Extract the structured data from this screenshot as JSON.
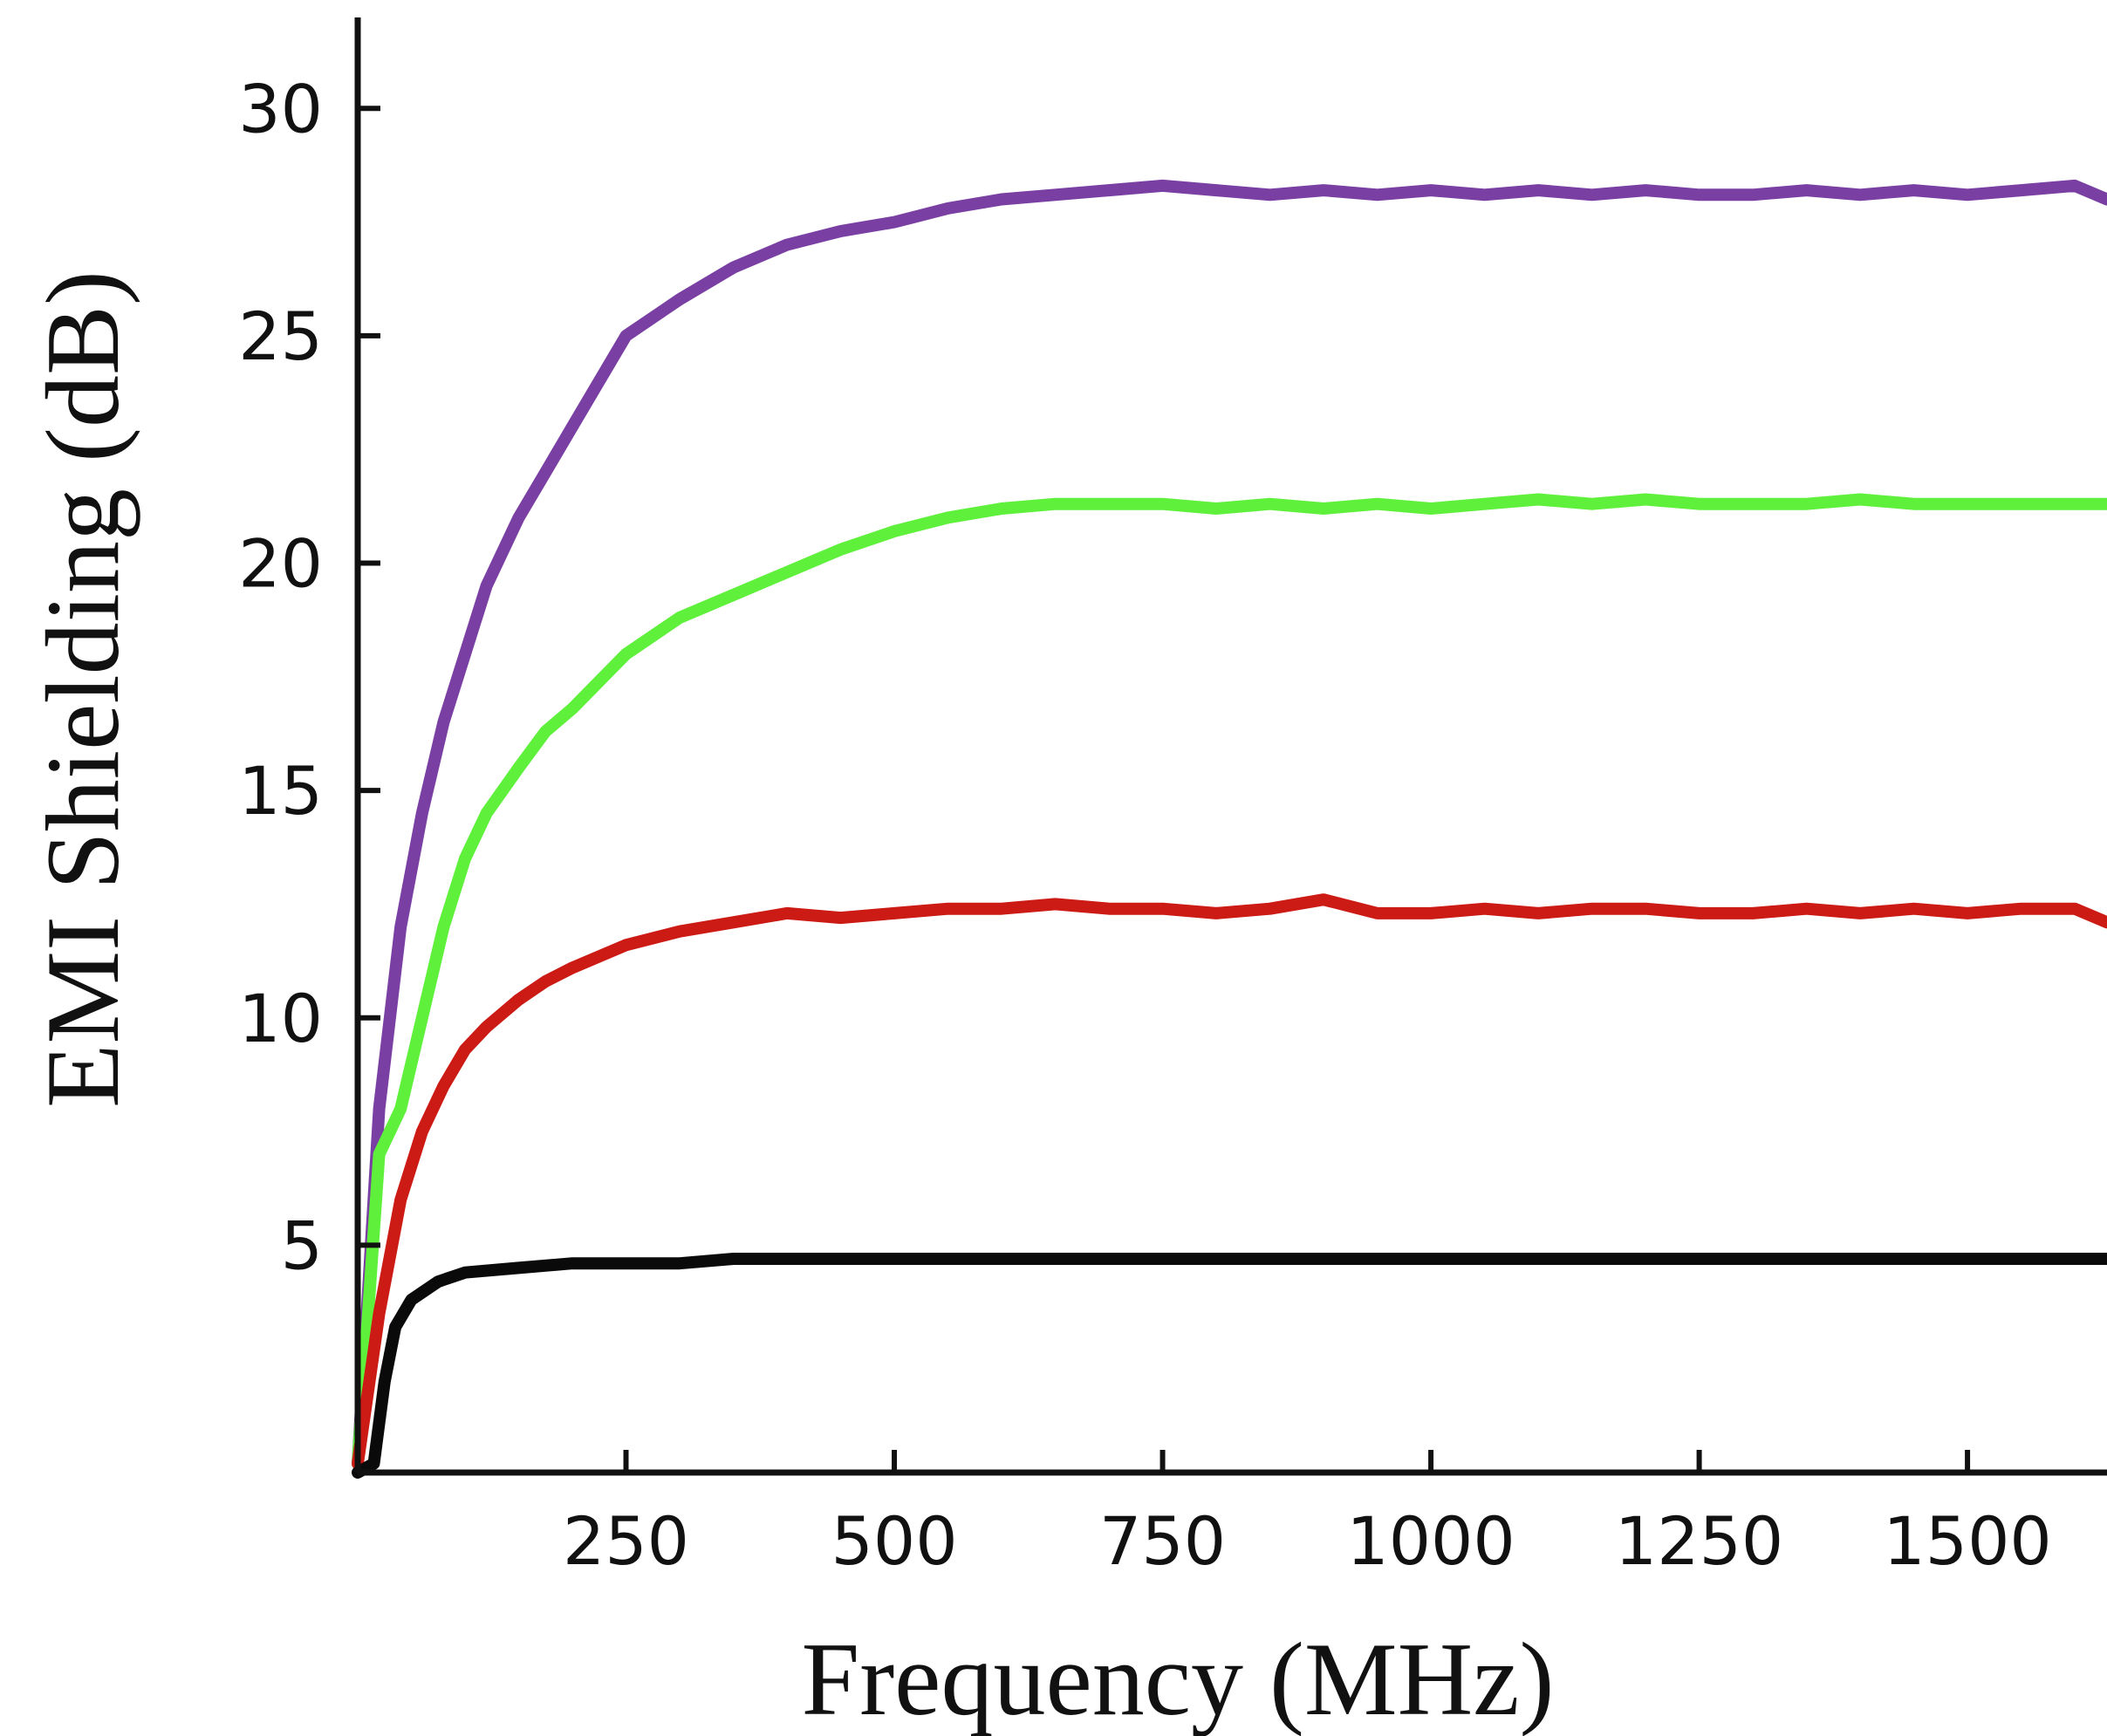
{
  "chart_data": {
    "type": "line",
    "title": "",
    "xlabel": "Frequency (MHz)",
    "ylabel": "EMI Shielding (dB)",
    "xlim": [
      0,
      1630
    ],
    "ylim": [
      0,
      32
    ],
    "x_ticks": [
      250,
      500,
      750,
      1000,
      1250,
      1500
    ],
    "x_tick_labels": [
      "250",
      "500",
      "750",
      "1000",
      "1250",
      "1500"
    ],
    "y_ticks": [
      5,
      10,
      15,
      20,
      25,
      30
    ],
    "y_tick_labels": [
      "5",
      "10",
      "15",
      "20",
      "25",
      "30"
    ],
    "grid": false,
    "legend": "none",
    "series": [
      {
        "color": "#7a3fa2",
        "x": [
          0,
          20,
          40,
          60,
          80,
          100,
          120,
          150,
          175,
          200,
          250,
          300,
          350,
          400,
          450,
          500,
          550,
          600,
          650,
          700,
          750,
          800,
          850,
          900,
          950,
          1000,
          1050,
          1100,
          1150,
          1200,
          1250,
          1300,
          1350,
          1400,
          1450,
          1500,
          1550,
          1600,
          1630
        ],
        "y": [
          0.2,
          8.0,
          12.0,
          14.5,
          16.5,
          18.0,
          19.5,
          21.0,
          22.0,
          23.0,
          25.0,
          25.8,
          26.5,
          27.0,
          27.3,
          27.5,
          27.8,
          28.0,
          28.1,
          28.2,
          28.3,
          28.2,
          28.1,
          28.2,
          28.1,
          28.2,
          28.1,
          28.2,
          28.1,
          28.2,
          28.1,
          28.1,
          28.2,
          28.1,
          28.2,
          28.1,
          28.2,
          28.3,
          28.0
        ]
      },
      {
        "color": "#5ff03c",
        "x": [
          0,
          20,
          40,
          60,
          80,
          100,
          120,
          150,
          175,
          200,
          250,
          300,
          350,
          400,
          450,
          500,
          550,
          600,
          650,
          700,
          750,
          800,
          850,
          900,
          950,
          1000,
          1050,
          1100,
          1150,
          1200,
          1250,
          1300,
          1350,
          1400,
          1450,
          1500,
          1550,
          1600,
          1630
        ],
        "y": [
          0.2,
          7.0,
          8.0,
          10.0,
          12.0,
          13.5,
          14.5,
          15.5,
          16.3,
          16.8,
          18.0,
          18.8,
          19.3,
          19.8,
          20.3,
          20.7,
          21.0,
          21.2,
          21.3,
          21.3,
          21.3,
          21.2,
          21.3,
          21.2,
          21.3,
          21.2,
          21.3,
          21.4,
          21.3,
          21.4,
          21.3,
          21.3,
          21.3,
          21.4,
          21.3,
          21.3,
          21.3,
          21.3,
          21.3
        ]
      },
      {
        "color": "#cc1a14",
        "x": [
          0,
          20,
          40,
          60,
          80,
          100,
          120,
          150,
          175,
          200,
          250,
          300,
          350,
          400,
          450,
          500,
          550,
          600,
          650,
          700,
          750,
          800,
          850,
          900,
          950,
          1000,
          1050,
          1100,
          1150,
          1200,
          1250,
          1300,
          1350,
          1400,
          1450,
          1500,
          1550,
          1600,
          1630
        ],
        "y": [
          0.2,
          3.5,
          6.0,
          7.5,
          8.5,
          9.3,
          9.8,
          10.4,
          10.8,
          11.1,
          11.6,
          11.9,
          12.1,
          12.3,
          12.2,
          12.3,
          12.4,
          12.4,
          12.5,
          12.4,
          12.4,
          12.3,
          12.4,
          12.6,
          12.3,
          12.3,
          12.4,
          12.3,
          12.4,
          12.4,
          12.3,
          12.3,
          12.4,
          12.3,
          12.4,
          12.3,
          12.4,
          12.4,
          12.1
        ]
      },
      {
        "color": "#0a0a0a",
        "x": [
          0,
          15,
          25,
          35,
          50,
          75,
          100,
          150,
          200,
          250,
          300,
          350,
          400,
          450,
          500,
          550,
          600,
          650,
          700,
          750,
          800,
          850,
          900,
          950,
          1000,
          1050,
          1100,
          1150,
          1200,
          1250,
          1300,
          1350,
          1400,
          1450,
          1500,
          1550,
          1600,
          1630
        ],
        "y": [
          0.0,
          0.2,
          2.0,
          3.2,
          3.8,
          4.2,
          4.4,
          4.5,
          4.6,
          4.6,
          4.6,
          4.7,
          4.7,
          4.7,
          4.7,
          4.7,
          4.7,
          4.7,
          4.7,
          4.7,
          4.7,
          4.7,
          4.7,
          4.7,
          4.7,
          4.7,
          4.7,
          4.7,
          4.7,
          4.7,
          4.7,
          4.7,
          4.7,
          4.7,
          4.7,
          4.7,
          4.7,
          4.7
        ]
      }
    ]
  }
}
